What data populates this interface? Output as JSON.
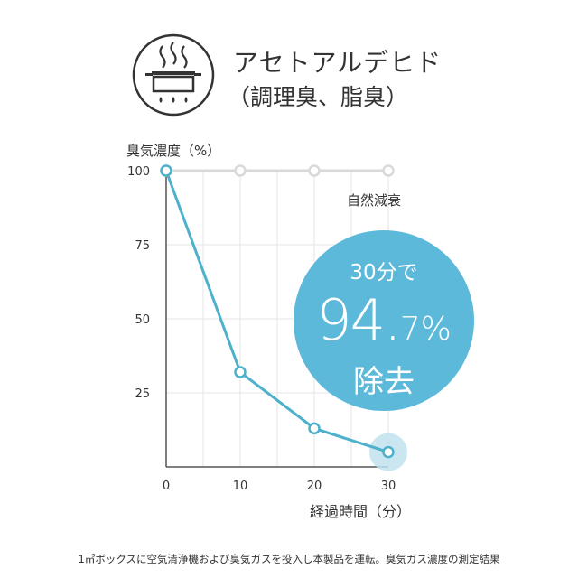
{
  "header": {
    "icon": "cooking-pot-steam-icon",
    "title": "アセトアルデヒド",
    "subtitle": "（調理臭、脂臭）"
  },
  "chart_data": {
    "type": "line",
    "ylabel": "臭気濃度（%）",
    "xlabel": "経過時間（分）",
    "x": [
      0,
      10,
      20,
      30
    ],
    "ylim": [
      0,
      100
    ],
    "xlim": [
      0,
      30
    ],
    "yticks": [
      25,
      50,
      75,
      100
    ],
    "xticks": [
      0,
      10,
      20,
      30
    ],
    "grid": true,
    "series": [
      {
        "name": "自然減衰",
        "values": [
          100,
          100,
          100,
          100
        ],
        "color": "#d9d9d9"
      },
      {
        "name": "",
        "values": [
          100,
          32,
          13,
          5
        ],
        "color": "#4db1cc"
      }
    ]
  },
  "callout": {
    "pre": "30分で",
    "value_main": "94.",
    "value_sub": "7%",
    "post": "除去",
    "color": "#5db9da"
  },
  "footnote": "1㎥ボックスに空気清浄機および臭気ガスを投入し本製品を運転。臭気ガス濃度の測定結果"
}
